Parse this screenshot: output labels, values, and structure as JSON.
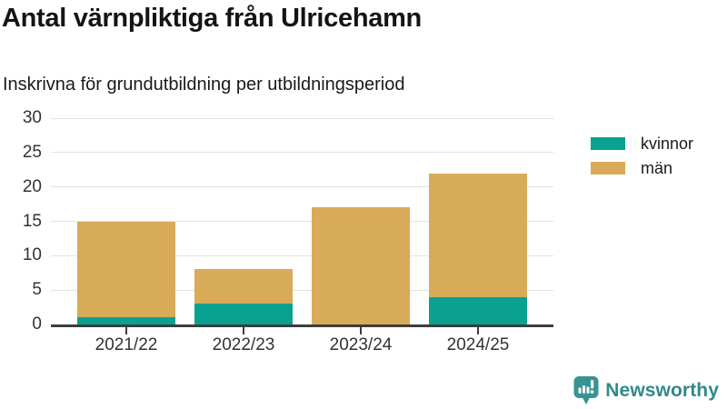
{
  "chart_data": {
    "type": "bar",
    "stacked": true,
    "title": "Antal värnpliktiga från Ulricehamn",
    "subtitle": "Inskrivna för grundutbildning per utbildningsperiod",
    "categories": [
      "2021/22",
      "2022/23",
      "2023/24",
      "2024/25"
    ],
    "series": [
      {
        "name": "kvinnor",
        "color": "#0aa191",
        "values": [
          1,
          3,
          0,
          4
        ]
      },
      {
        "name": "män",
        "color": "#d8ab58",
        "values": [
          14,
          5,
          17,
          18
        ]
      }
    ],
    "stack_totals": [
      15,
      8,
      17,
      22
    ],
    "xlabel": "",
    "ylabel": "",
    "ylim": [
      0,
      30
    ],
    "yticks": [
      0,
      5,
      10,
      15,
      20,
      25,
      30
    ],
    "grid": true,
    "legend_position": "right-top"
  },
  "branding": {
    "logo_text": "Newsworthy",
    "logo_icon": "newsworthy-bar-chart-bubble-icon",
    "text_color": "#2f8a89",
    "icon_color": "#3a9393"
  },
  "theme": {
    "background": "#ffffff",
    "gridline_color": "#e3e3e3",
    "axis_color": "#3d3d3d",
    "title_color": "#141414",
    "tick_label_color": "#333333"
  }
}
